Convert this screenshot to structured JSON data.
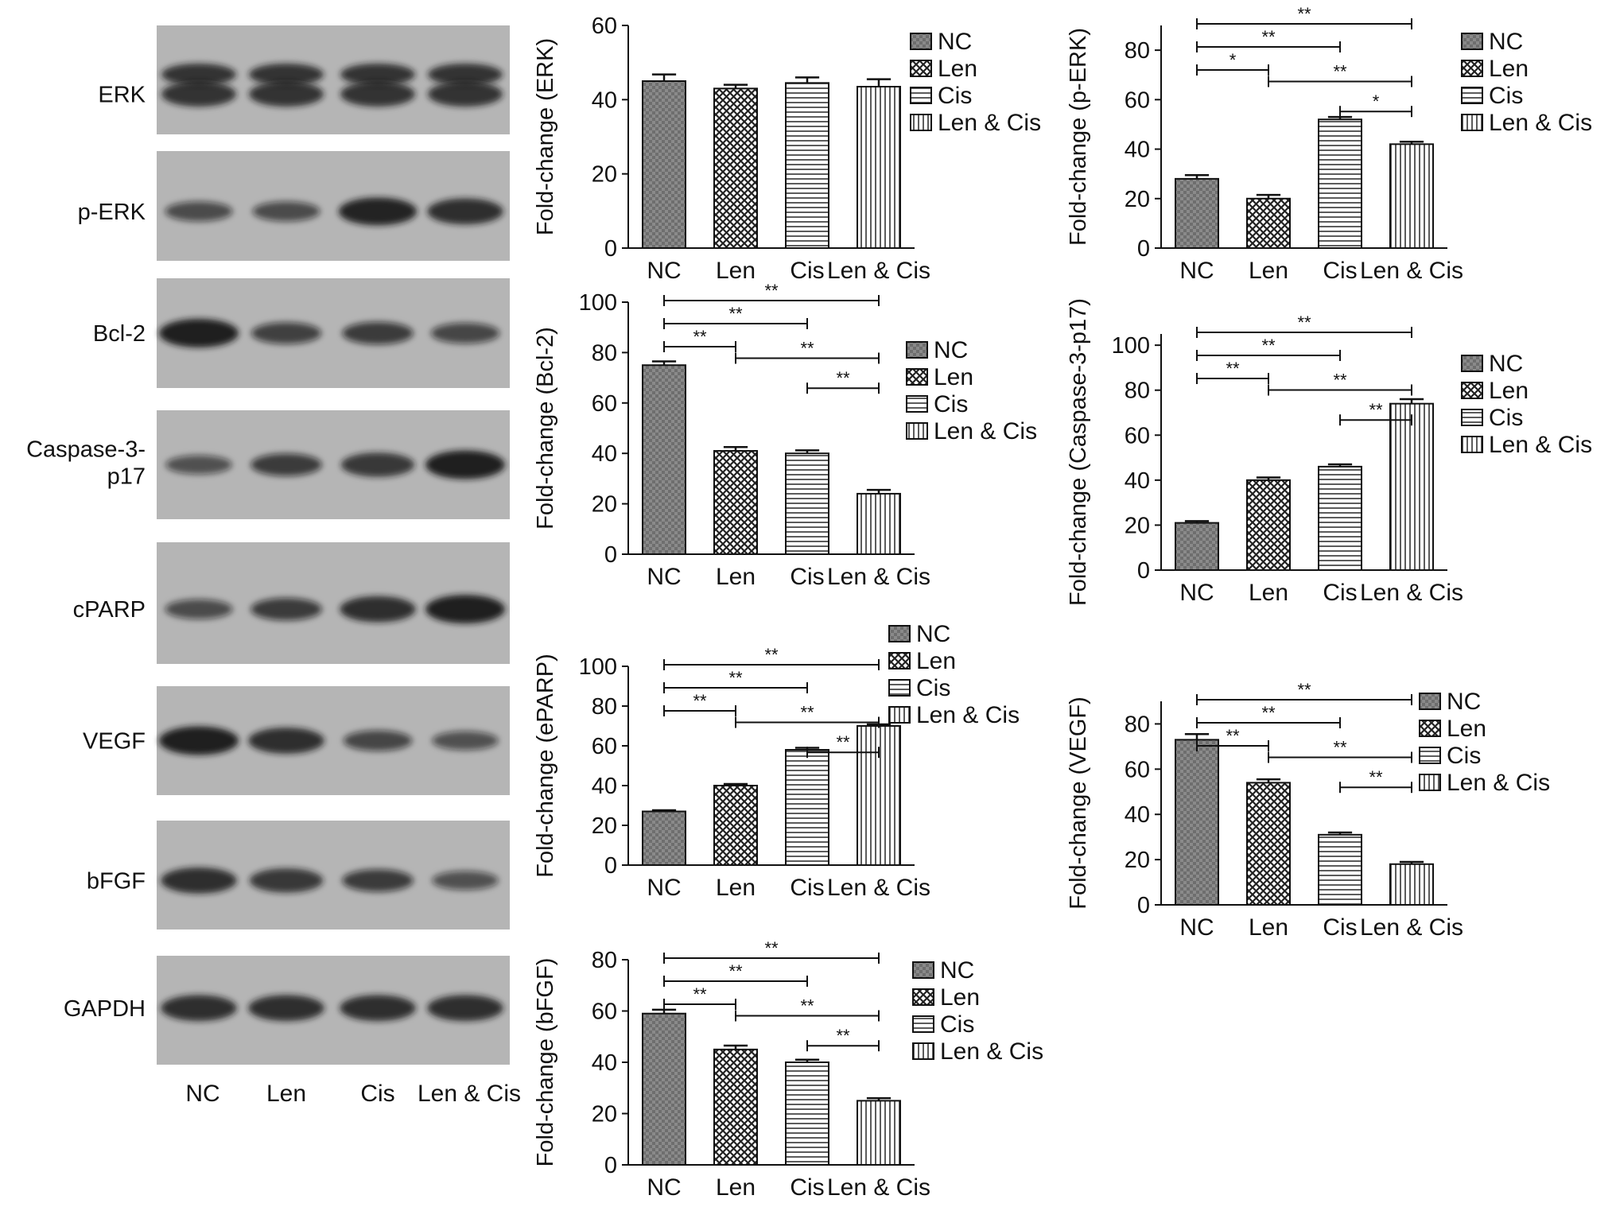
{
  "groups": [
    "NC",
    "Len",
    "Cis",
    "Len & Cis"
  ],
  "blot": {
    "proteins": [
      "ERK",
      "p-ERK",
      "Bcl-2",
      "Caspase-3-p17",
      "cPARP",
      "VEGF",
      "bFGF",
      "GAPDH"
    ],
    "lane_labels": [
      "NC",
      "Len",
      "Cis",
      "Len & Cis"
    ],
    "band_intensity": [
      [
        0.8,
        0.8,
        0.8,
        0.8
      ],
      [
        0.5,
        0.5,
        0.95,
        0.85
      ],
      [
        1.0,
        0.6,
        0.65,
        0.55
      ],
      [
        0.45,
        0.65,
        0.75,
        1.0
      ],
      [
        0.5,
        0.65,
        0.85,
        1.0
      ],
      [
        1.0,
        0.85,
        0.55,
        0.45
      ],
      [
        0.85,
        0.75,
        0.65,
        0.45
      ],
      [
        0.85,
        0.85,
        0.85,
        0.85
      ]
    ]
  },
  "colors": {
    "bar_fill": "#ffffff",
    "bar_stroke": "#111111",
    "blot_bg": "#b5b5b5",
    "band": "#151515"
  },
  "chart_data": [
    {
      "type": "bar",
      "ylabel": "Fold-change (ERK)",
      "categories": [
        "NC",
        "Len",
        "Cis",
        "Len & Cis"
      ],
      "values": [
        45,
        43,
        44.5,
        43.5
      ],
      "errors": [
        1.8,
        1.0,
        1.5,
        2.0
      ],
      "ylim": [
        0,
        60
      ],
      "yticks": [
        0,
        20,
        40,
        60
      ],
      "legend": [
        "NC",
        "Len",
        "Cis",
        "Len & Cis"
      ],
      "legend_position": "right",
      "significance": []
    },
    {
      "type": "bar",
      "ylabel": "Fold-change (p-ERK)",
      "categories": [
        "NC",
        "Len",
        "Cis",
        "Len & Cis"
      ],
      "values": [
        28,
        20,
        52,
        42
      ],
      "errors": [
        1.5,
        1.5,
        1.0,
        1.0
      ],
      "ylim": [
        0,
        90
      ],
      "yticks": [
        0,
        20,
        40,
        60,
        80
      ],
      "legend": [
        "NC",
        "Len",
        "Cis",
        "Len & Cis"
      ],
      "legend_position": "right",
      "significance": [
        {
          "from": 0,
          "to": 3,
          "label": "**"
        },
        {
          "from": 0,
          "to": 2,
          "label": "**"
        },
        {
          "from": 0,
          "to": 1,
          "label": "*"
        },
        {
          "from": 1,
          "to": 3,
          "label": "**"
        },
        {
          "from": 2,
          "to": 3,
          "label": "*"
        }
      ]
    },
    {
      "type": "bar",
      "ylabel": "Fold-change (Bcl-2)",
      "categories": [
        "NC",
        "Len",
        "Cis",
        "Len & Cis"
      ],
      "values": [
        75,
        41,
        40,
        24
      ],
      "errors": [
        1.5,
        1.5,
        1.2,
        1.5
      ],
      "ylim": [
        0,
        100
      ],
      "yticks": [
        0,
        20,
        40,
        60,
        80,
        100
      ],
      "legend": [
        "NC",
        "Len",
        "Cis",
        "Len & Cis"
      ],
      "legend_position": "right",
      "significance": [
        {
          "from": 0,
          "to": 3,
          "label": "**"
        },
        {
          "from": 0,
          "to": 2,
          "label": "**"
        },
        {
          "from": 0,
          "to": 1,
          "label": "**"
        },
        {
          "from": 1,
          "to": 3,
          "label": "**"
        },
        {
          "from": 2,
          "to": 3,
          "label": "**"
        }
      ]
    },
    {
      "type": "bar",
      "ylabel": "Fold-change (Caspase-3-p17)",
      "categories": [
        "NC",
        "Len",
        "Cis",
        "Len & Cis"
      ],
      "values": [
        21,
        40,
        46,
        74
      ],
      "errors": [
        0.8,
        1.2,
        1.0,
        2.0
      ],
      "ylim": [
        0,
        105
      ],
      "yticks": [
        0,
        20,
        40,
        60,
        80,
        100
      ],
      "legend": [
        "NC",
        "Len",
        "Cis",
        "Len & Cis"
      ],
      "legend_position": "right",
      "significance": [
        {
          "from": 0,
          "to": 3,
          "label": "**"
        },
        {
          "from": 0,
          "to": 2,
          "label": "**"
        },
        {
          "from": 0,
          "to": 1,
          "label": "**"
        },
        {
          "from": 1,
          "to": 3,
          "label": "**"
        },
        {
          "from": 2,
          "to": 3,
          "label": "**"
        }
      ]
    },
    {
      "type": "bar",
      "ylabel": "Fold-change (ePARP)",
      "categories": [
        "NC",
        "Len",
        "Cis",
        "Len & Cis"
      ],
      "values": [
        27,
        40,
        58,
        70
      ],
      "errors": [
        0.6,
        0.8,
        1.0,
        0.8
      ],
      "ylim": [
        0,
        100
      ],
      "yticks": [
        0,
        20,
        40,
        60,
        80,
        100
      ],
      "legend": [
        "NC",
        "Len",
        "Cis",
        "Len & Cis"
      ],
      "legend_position": "right",
      "significance": [
        {
          "from": 0,
          "to": 3,
          "label": "**"
        },
        {
          "from": 0,
          "to": 2,
          "label": "**"
        },
        {
          "from": 0,
          "to": 1,
          "label": "**"
        },
        {
          "from": 1,
          "to": 3,
          "label": "**"
        },
        {
          "from": 2,
          "to": 3,
          "label": "**"
        }
      ]
    },
    {
      "type": "bar",
      "ylabel": "Fold-change (VEGF)",
      "categories": [
        "NC",
        "Len",
        "Cis",
        "Len & Cis"
      ],
      "values": [
        73,
        54,
        31,
        18
      ],
      "errors": [
        2.5,
        1.5,
        1.0,
        1.0
      ],
      "ylim": [
        0,
        90
      ],
      "yticks": [
        0,
        20,
        40,
        60,
        80
      ],
      "legend": [
        "NC",
        "Len",
        "Cis",
        "Len & Cis"
      ],
      "legend_position": "right",
      "significance": [
        {
          "from": 0,
          "to": 3,
          "label": "**"
        },
        {
          "from": 0,
          "to": 2,
          "label": "**"
        },
        {
          "from": 0,
          "to": 1,
          "label": "**"
        },
        {
          "from": 1,
          "to": 3,
          "label": "**"
        },
        {
          "from": 2,
          "to": 3,
          "label": "**"
        }
      ]
    },
    {
      "type": "bar",
      "ylabel": "Fold-change (bFGF)",
      "categories": [
        "NC",
        "Len",
        "Cis",
        "Len & Cis"
      ],
      "values": [
        59,
        45,
        40,
        25
      ],
      "errors": [
        1.5,
        1.5,
        1.0,
        1.0
      ],
      "ylim": [
        0,
        80
      ],
      "yticks": [
        0,
        20,
        40,
        60,
        80
      ],
      "legend": [
        "NC",
        "Len",
        "Cis",
        "Len & Cis"
      ],
      "legend_position": "right",
      "significance": [
        {
          "from": 0,
          "to": 3,
          "label": "**"
        },
        {
          "from": 0,
          "to": 2,
          "label": "**"
        },
        {
          "from": 0,
          "to": 1,
          "label": "**"
        },
        {
          "from": 1,
          "to": 3,
          "label": "**"
        },
        {
          "from": 2,
          "to": 3,
          "label": "**"
        }
      ]
    }
  ]
}
